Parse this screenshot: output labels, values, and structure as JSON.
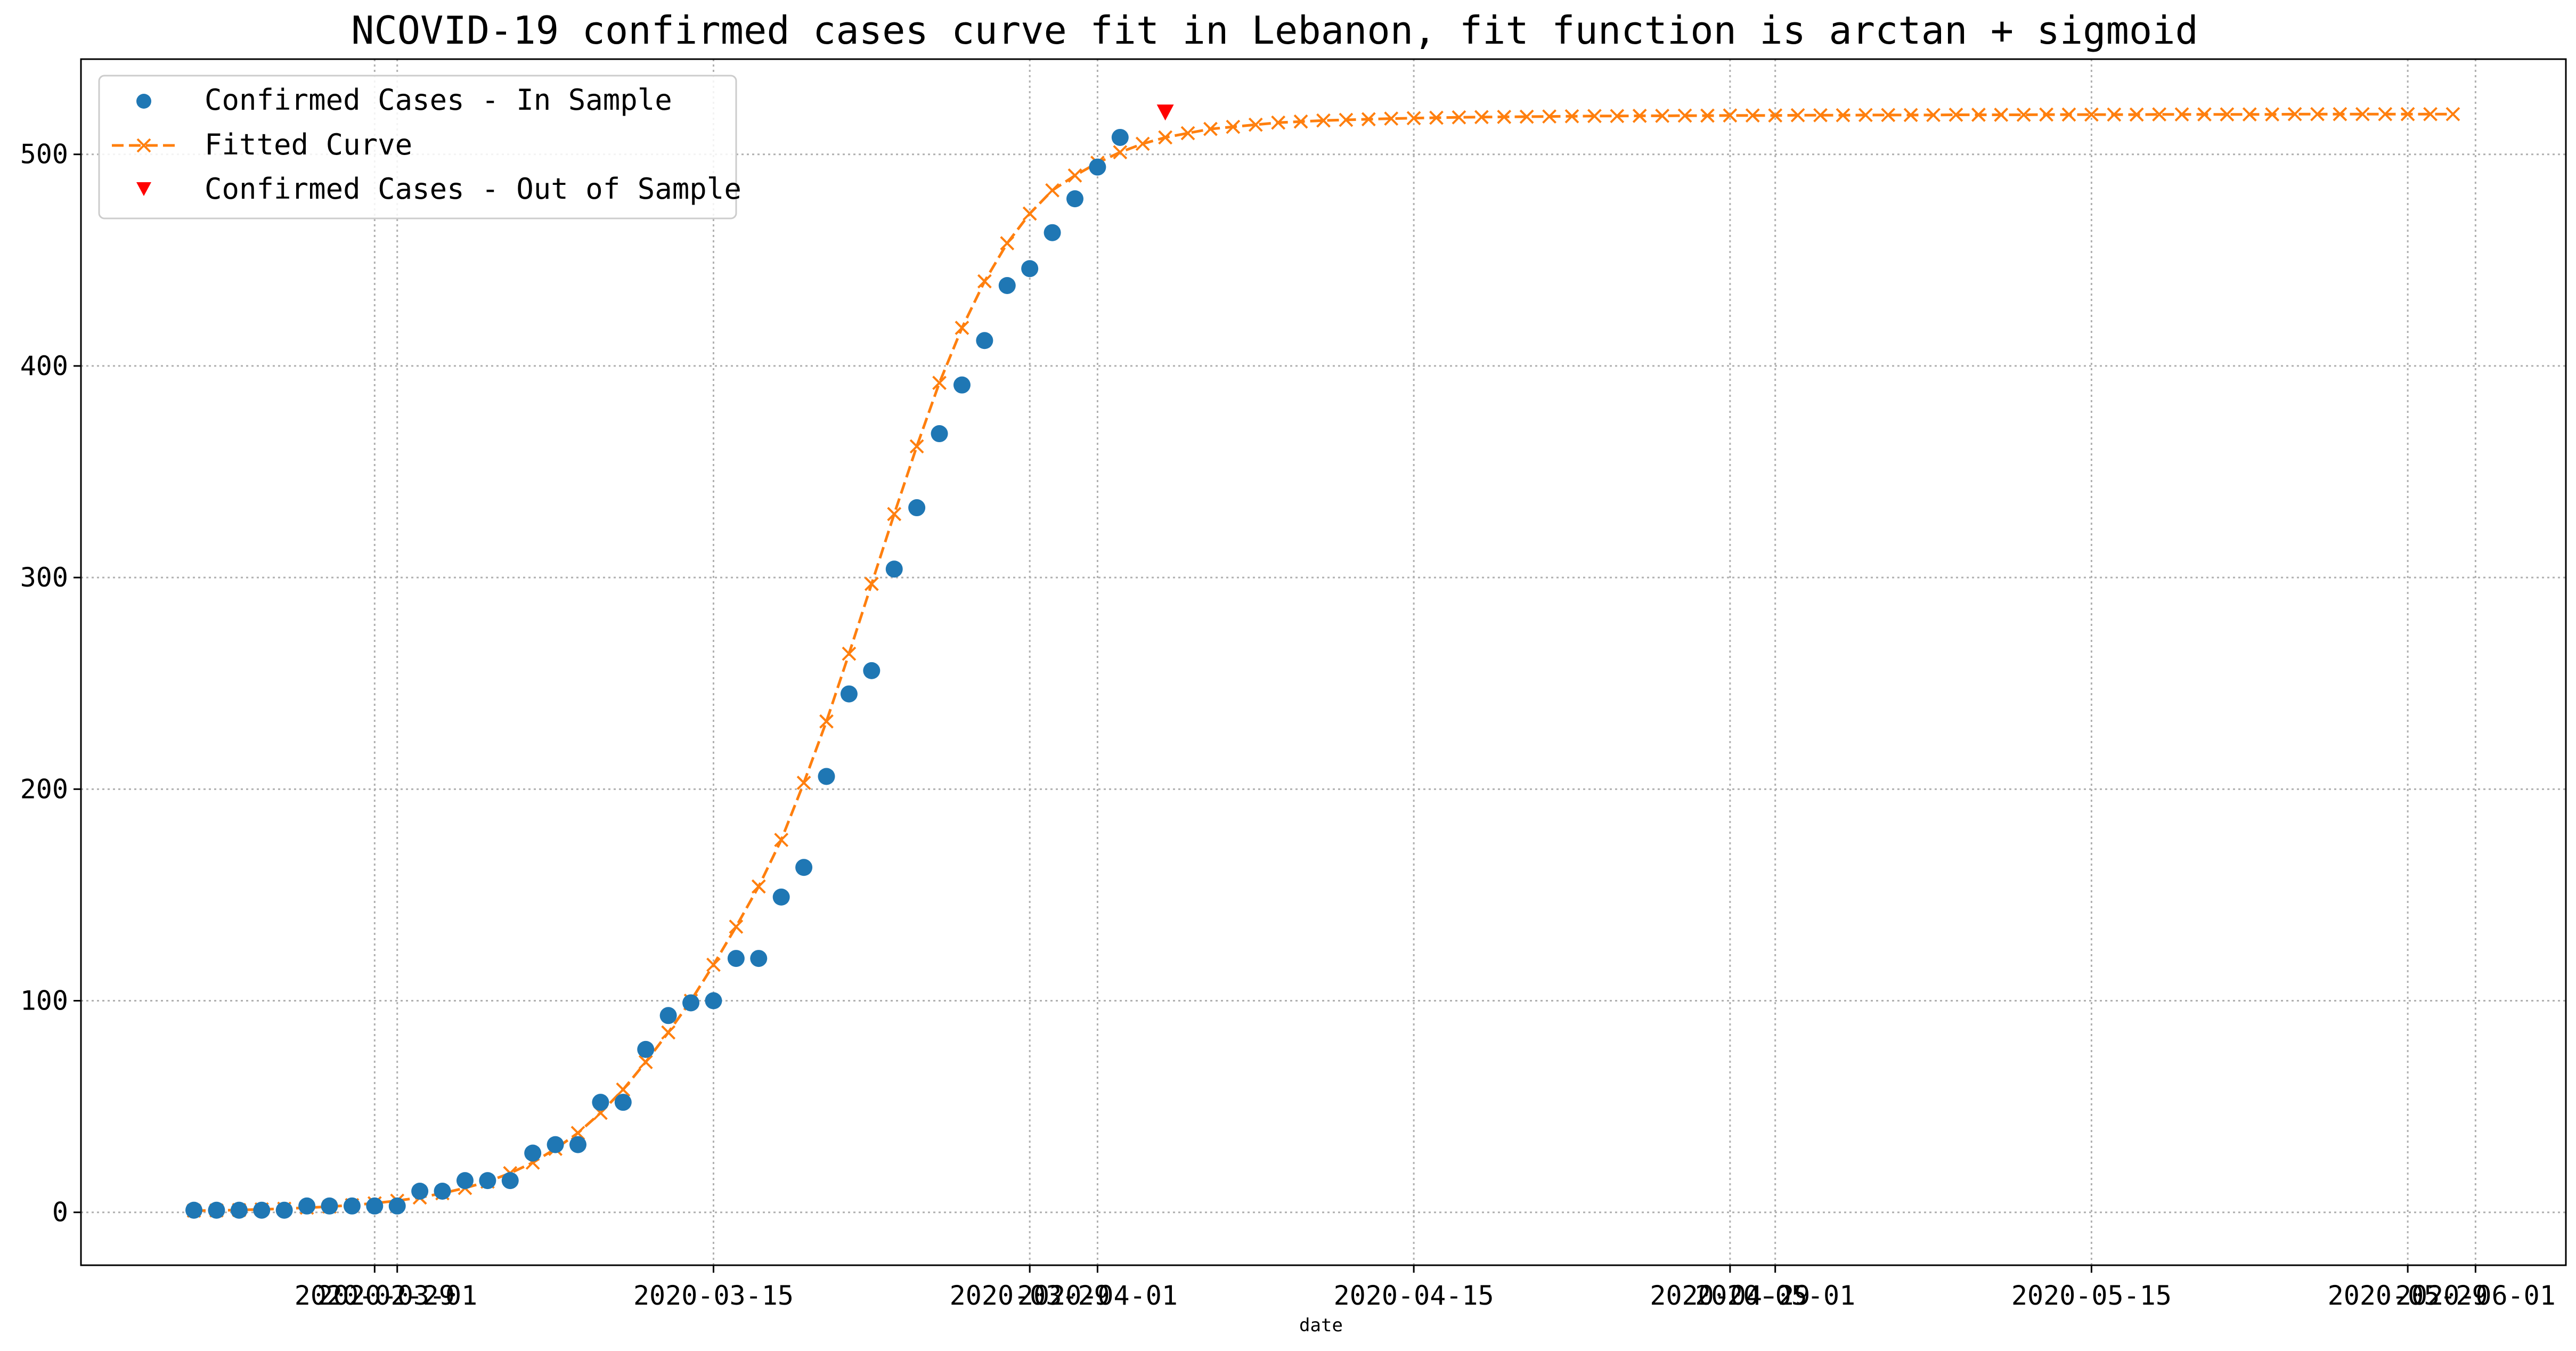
{
  "chart_data": {
    "type": "line",
    "title": "NCOVID-19 confirmed cases curve fit in Lebanon, fit function is arctan + sigmoid",
    "xlabel": "date",
    "ylabel": "",
    "x_start": "2020-02-21",
    "x_end": "2020-05-31",
    "xlim": [
      "2020-02-16",
      "2020-06-05"
    ],
    "ylim": [
      -25,
      545
    ],
    "grid": true,
    "legend_position": "top-left",
    "x_tick_labels": [
      {
        "date": "2020-02-29",
        "label": "2020-02-29"
      },
      {
        "date": "2020-03-01",
        "label": "2020-03-01"
      },
      {
        "date": "2020-03-15",
        "label": "2020-03-15"
      },
      {
        "date": "2020-03-29",
        "label": "2020-03-29"
      },
      {
        "date": "2020-04-01",
        "label": "2020-04-01"
      },
      {
        "date": "2020-04-15",
        "label": "2020-04-15"
      },
      {
        "date": "2020-04-29",
        "label": "2020-04-29"
      },
      {
        "date": "2020-05-01",
        "label": "2020-05-01"
      },
      {
        "date": "2020-05-15",
        "label": "2020-05-15"
      },
      {
        "date": "2020-05-29",
        "label": "2020-05-29"
      },
      {
        "date": "2020-06-01",
        "label": "2020-06-01"
      }
    ],
    "y_ticks": [
      0,
      100,
      200,
      300,
      400,
      500
    ],
    "series": [
      {
        "name": "Confirmed Cases - In Sample",
        "style": "dots",
        "color": "#1f77b4",
        "start": "2020-02-21",
        "values": [
          1,
          1,
          1,
          1,
          1,
          3,
          3,
          3,
          3,
          3,
          10,
          10,
          15,
          15,
          15,
          28,
          32,
          32,
          52,
          52,
          77,
          93,
          99,
          100,
          120,
          120,
          149,
          163,
          206,
          245,
          256,
          304,
          333,
          368,
          391,
          412,
          438,
          446,
          463,
          479,
          494,
          508
        ]
      },
      {
        "name": "Fitted Curve",
        "style": "dashed-x",
        "color": "#ff7f0e",
        "start": "2020-02-21",
        "values": [
          0.8,
          0.9,
          1.1,
          1.4,
          1.7,
          2.2,
          2.7,
          3.4,
          4.3,
          5.5,
          7,
          9,
          11.5,
          14.5,
          18.5,
          23.5,
          30,
          37.5,
          47,
          58,
          71,
          85,
          100,
          117,
          135,
          154,
          176,
          203,
          232,
          264,
          297,
          330,
          362,
          392,
          418,
          440,
          458,
          472,
          483,
          490,
          496,
          501,
          505,
          508,
          510,
          512,
          513,
          514,
          515,
          515.5,
          516,
          516.3,
          516.6,
          516.9,
          517.1,
          517.3,
          517.5,
          517.6,
          517.7,
          517.8,
          517.9,
          518,
          518.1,
          518.1,
          518.2,
          518.2,
          518.3,
          518.3,
          518.4,
          518.4,
          518.4,
          518.5,
          518.5,
          518.5,
          518.6,
          518.6,
          518.6,
          518.6,
          518.7,
          518.7,
          518.7,
          518.7,
          518.8,
          518.8,
          518.8,
          518.8,
          518.8,
          518.9,
          518.9,
          518.9,
          518.9,
          518.9,
          518.9,
          519,
          519,
          519,
          519,
          519,
          519,
          519,
          519
        ]
      },
      {
        "name": "Confirmed Cases - Out of Sample",
        "style": "triangle",
        "color": "#ff0000",
        "points": [
          {
            "x": "2020-04-04",
            "y": 520
          }
        ]
      }
    ]
  },
  "colors": {
    "in_sample": "#1f77b4",
    "fitted": "#ff7f0e",
    "out_of_sample": "#ff0000",
    "grid": "#b0b0b0"
  }
}
